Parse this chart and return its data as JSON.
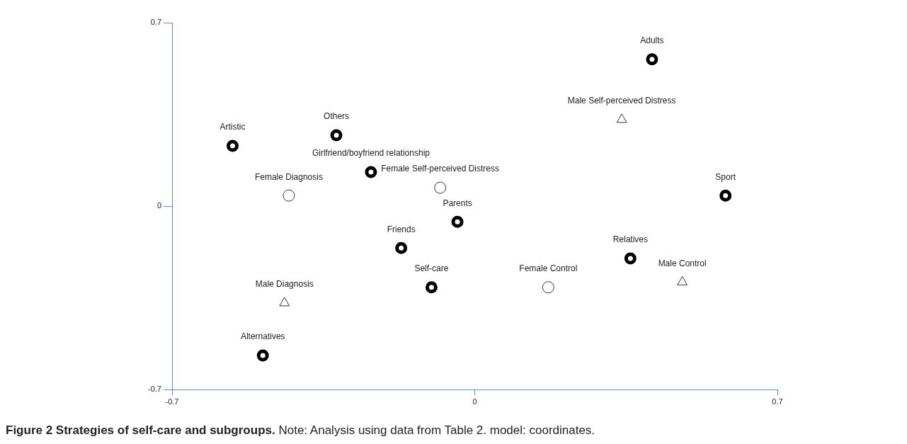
{
  "chart_data": {
    "type": "scatter",
    "title": "Figure 2 Strategies of self-care and subgroups.",
    "xlim": [
      -0.7,
      0.7
    ],
    "ylim": [
      -0.7,
      0.7
    ],
    "xticks": [
      -0.7,
      0,
      0.7
    ],
    "yticks": [
      -0.7,
      0,
      0.7
    ],
    "grid": false,
    "legend": false,
    "series": [
      {
        "color": "#000000",
        "marker": "circle",
        "x": [
          0.41,
          -0.56,
          -0.32,
          -0.24,
          0.58,
          -0.04,
          -0.17,
          0.36,
          -0.1,
          -0.49
        ],
        "values": [
          0.56,
          0.23,
          0.27,
          0.13,
          0.04,
          -0.06,
          -0.16,
          -0.2,
          -0.31,
          -0.57
        ]
      },
      {
        "color": "#333333",
        "marker": "circle",
        "x": [
          -0.43,
          -0.08,
          0.17
        ],
        "values": [
          0.04,
          0.07,
          -0.31
        ]
      },
      {
        "color": "#333333",
        "marker": "triangle",
        "x": [
          0.34,
          0.48,
          -0.44
        ],
        "values": [
          0.33,
          -0.29,
          -0.37
        ]
      }
    ],
    "annotations": [
      {
        "text": "Adults",
        "x": 0.41,
        "y": 0.56
      },
      {
        "text": "Artistic",
        "x": -0.56,
        "y": 0.23
      },
      {
        "text": "Others",
        "x": -0.32,
        "y": 0.27
      },
      {
        "text": "Girlfriend/boyfriend relationship",
        "x": -0.24,
        "y": 0.13
      },
      {
        "text": "Sport",
        "x": 0.58,
        "y": 0.04
      },
      {
        "text": "Parents",
        "x": -0.04,
        "y": -0.06
      },
      {
        "text": "Friends",
        "x": -0.17,
        "y": -0.16
      },
      {
        "text": "Relatives",
        "x": 0.36,
        "y": -0.2
      },
      {
        "text": "Self-care",
        "x": -0.1,
        "y": -0.31
      },
      {
        "text": "Alternatives",
        "x": -0.49,
        "y": -0.57
      },
      {
        "text": "Female Diagnosis",
        "x": -0.43,
        "y": 0.04
      },
      {
        "text": "Female Self-perceived Distress",
        "x": -0.08,
        "y": 0.07
      },
      {
        "text": "Female Control",
        "x": 0.17,
        "y": -0.31
      },
      {
        "text": "Male Self-perceived Distress",
        "x": 0.34,
        "y": 0.33
      },
      {
        "text": "Male Control",
        "x": 0.48,
        "y": -0.29
      },
      {
        "text": "Male Diagnosis",
        "x": -0.44,
        "y": -0.37
      },
      "Note: Analysis using data from Table 2. model: coordinates."
    ]
  }
}
